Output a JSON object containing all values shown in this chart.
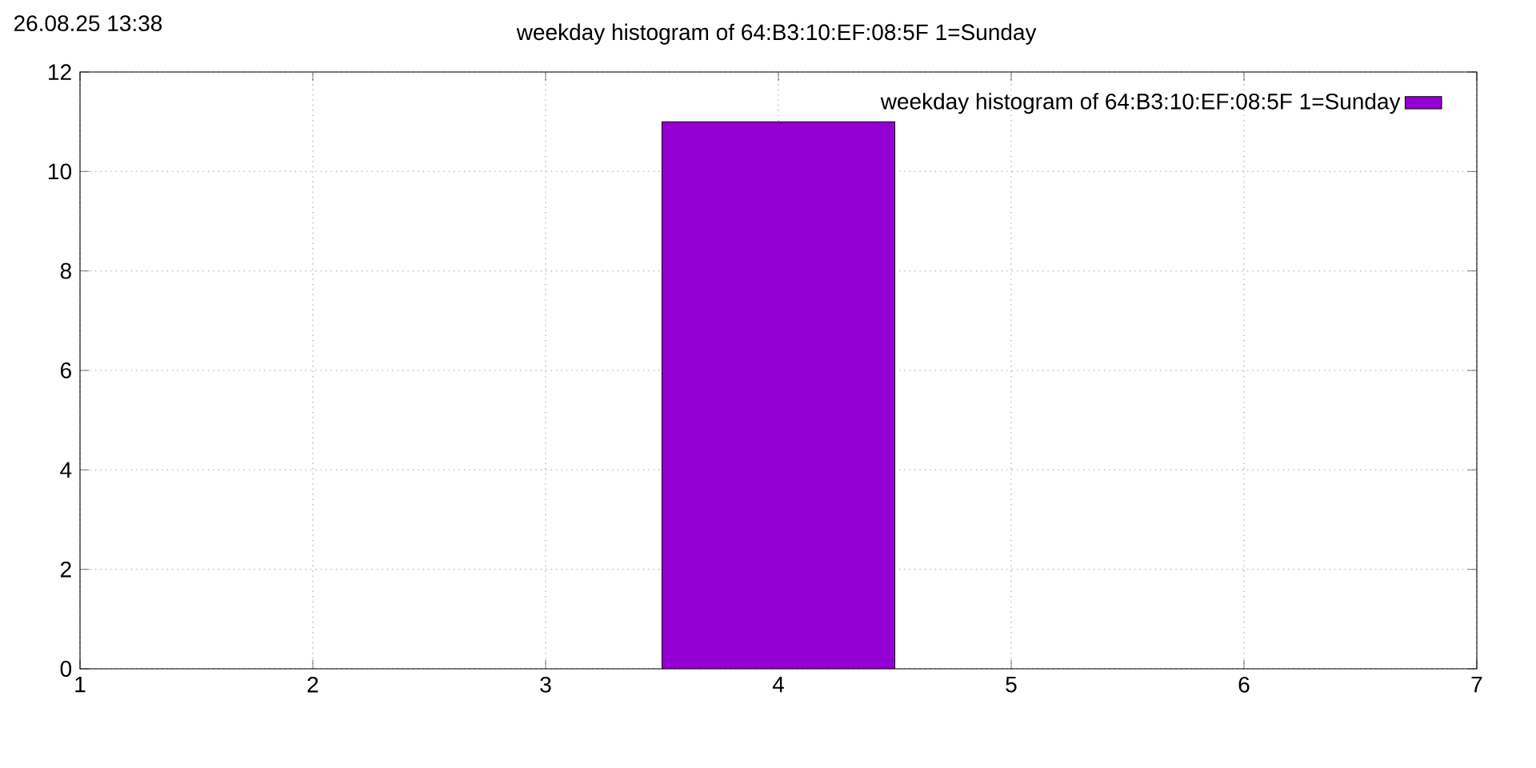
{
  "chart_data": {
    "type": "histogram",
    "title": "weekday histogram of 64:B3:10:EF:08:5F 1=Sunday",
    "annotations": [
      "26.08.25 13:38"
    ],
    "bins": [
      3.5,
      4.5
    ],
    "series": [
      {
        "name": "weekday histogram of 64:B3:10:EF:08:5F 1=Sunday",
        "color": "#9400d3",
        "values": [
          11
        ]
      }
    ],
    "xlim": [
      1,
      7
    ],
    "xticks": [
      1,
      2,
      3,
      4,
      5,
      6,
      7
    ],
    "ylim": [
      0,
      12
    ],
    "yticks": [
      0,
      2,
      4,
      6,
      8,
      10,
      12
    ],
    "grid": true,
    "legend": "top right"
  }
}
